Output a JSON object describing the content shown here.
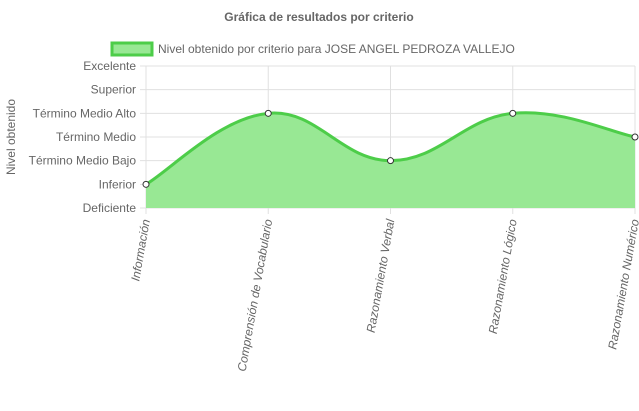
{
  "chart_data": {
    "type": "area",
    "title": "Gráfica de resultados por criterio",
    "ylabel": "Nivel obtenido",
    "xlabel": "",
    "y_levels": [
      "Deficiente",
      "Inferior",
      "Término Medio Bajo",
      "Término Medio",
      "Término Medio Alto",
      "Superior",
      "Excelente"
    ],
    "ylim": [
      0,
      6
    ],
    "categories": [
      "Información",
      "Comprensión de Vocabulario",
      "Razonamiento Verbal",
      "Razonamiento Lógico",
      "Razonamiento Numérico"
    ],
    "series": [
      {
        "name": "Nivel obtenido por criterio para JOSE ANGEL PEDROZA VALLEJO",
        "values": [
          1,
          4,
          2,
          4,
          3
        ],
        "fill_color": "#98e894",
        "line_color": "#4dcd49"
      }
    ],
    "legend_position": "top",
    "grid": true
  }
}
